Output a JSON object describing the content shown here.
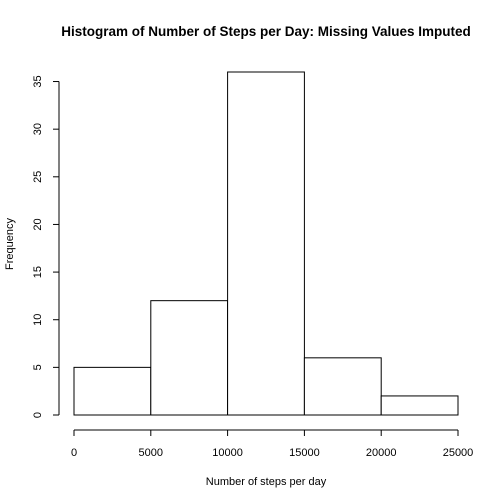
{
  "chart_data": {
    "type": "bar",
    "title": "Histogram of Number of Steps per Day: Missing Values Imputed",
    "xlabel": "Number of steps per day",
    "ylabel": "Frequency",
    "bins": [
      {
        "from": 0,
        "to": 5000,
        "count": 5
      },
      {
        "from": 5000,
        "to": 10000,
        "count": 12
      },
      {
        "from": 10000,
        "to": 15000,
        "count": 36
      },
      {
        "from": 15000,
        "to": 20000,
        "count": 6
      },
      {
        "from": 20000,
        "to": 25000,
        "count": 2
      }
    ],
    "xlim": [
      0,
      25000
    ],
    "ylim": [
      0,
      36
    ],
    "x_ticks": [
      0,
      5000,
      10000,
      15000,
      20000,
      25000
    ],
    "y_ticks": [
      0,
      5,
      10,
      15,
      20,
      25,
      30,
      35
    ],
    "grid": false,
    "bar_fill": "#ffffff",
    "bar_stroke": "#000000"
  }
}
